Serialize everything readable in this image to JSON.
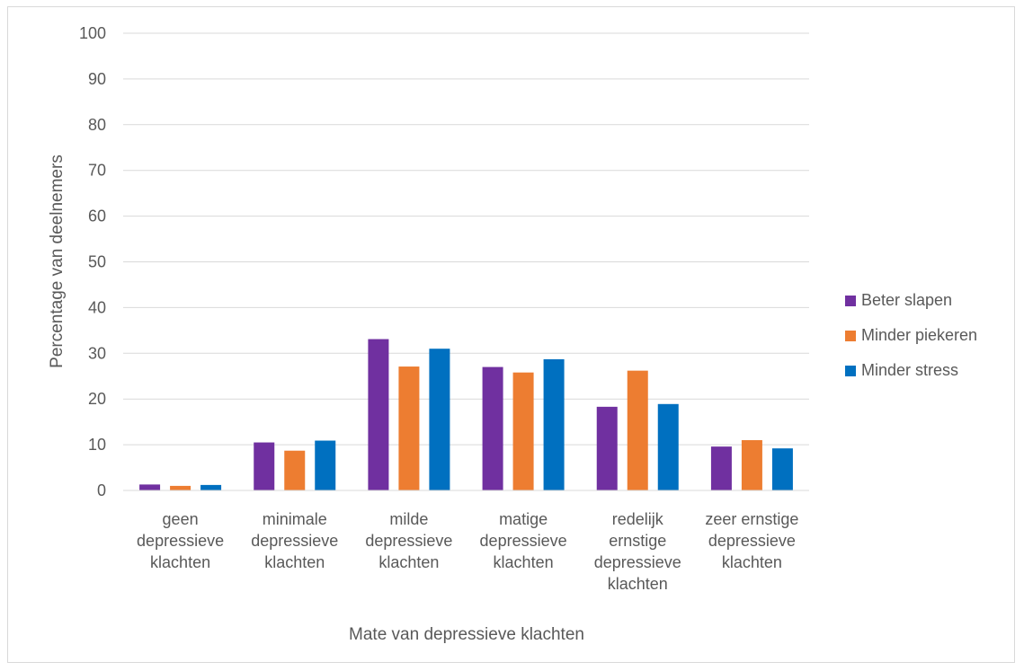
{
  "chart_data": {
    "type": "bar",
    "title": "",
    "xlabel": "Mate van depressieve klachten",
    "ylabel": "Percentage van deelnemers",
    "ylim": [
      0,
      100
    ],
    "yticks": [
      0,
      10,
      20,
      30,
      40,
      50,
      60,
      70,
      80,
      90,
      100
    ],
    "grid": true,
    "legend_position": "right",
    "categories": [
      "geen depressieve klachten",
      "minimale depressieve klachten",
      "milde depressieve klachten",
      "matige depressieve klachten",
      "redelijk ernstige depressieve klachten",
      "zeer ernstige depressieve klachten"
    ],
    "category_lines": [
      [
        "geen",
        "depressieve",
        "klachten"
      ],
      [
        "minimale",
        "depressieve",
        "klachten"
      ],
      [
        "milde",
        "depressieve",
        "klachten"
      ],
      [
        "matige",
        "depressieve",
        "klachten"
      ],
      [
        "redelijk",
        "ernstige",
        "depressieve",
        "klachten"
      ],
      [
        "zeer ernstige",
        "depressieve",
        "klachten"
      ]
    ],
    "series": [
      {
        "name": "Beter slapen",
        "color": "#7030A0",
        "values": [
          1.3,
          10.5,
          33.1,
          27.0,
          18.3,
          9.6
        ]
      },
      {
        "name": "Minder piekeren",
        "color": "#ED7D31",
        "values": [
          1.0,
          8.7,
          27.1,
          25.8,
          26.2,
          11.0
        ]
      },
      {
        "name": "Minder stress",
        "color": "#0070C0",
        "values": [
          1.2,
          10.9,
          31.0,
          28.7,
          18.9,
          9.2
        ]
      }
    ]
  }
}
